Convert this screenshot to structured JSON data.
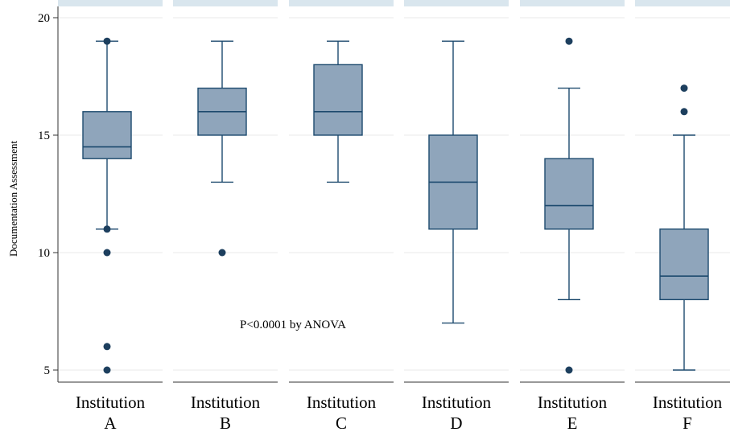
{
  "chart_data": {
    "type": "box",
    "ylabel": "Documentation Assessment",
    "ylim": [
      4,
      20
    ],
    "yticks": [
      5,
      10,
      15,
      20
    ],
    "grid": true,
    "annotation": "P<0.0001 by ANOVA",
    "colors": {
      "box_fill": "#8fa5bb",
      "box_stroke": "#1d4a6e",
      "outlier": "#1d3f5e",
      "panel_strip": "#d9e6ee",
      "grid": "#eaeaea",
      "axis": "#333333"
    },
    "groups": [
      {
        "label_line1": "Institution",
        "label_line2": "A",
        "whisker_low": 11,
        "q1": 14,
        "median": 14.5,
        "q3": 16,
        "whisker_high": 19,
        "outliers": [
          19,
          11,
          10,
          6,
          5
        ]
      },
      {
        "label_line1": "Institution",
        "label_line2": "B",
        "whisker_low": 13,
        "q1": 15,
        "median": 16,
        "q3": 17,
        "whisker_high": 19,
        "outliers": [
          10
        ]
      },
      {
        "label_line1": "Institution",
        "label_line2": "C",
        "whisker_low": 13,
        "q1": 15,
        "median": 16,
        "q3": 18,
        "whisker_high": 19,
        "outliers": []
      },
      {
        "label_line1": "Institution",
        "label_line2": "D",
        "whisker_low": 7,
        "q1": 11,
        "median": 13,
        "q3": 15,
        "whisker_high": 19,
        "outliers": []
      },
      {
        "label_line1": "Institution",
        "label_line2": "E",
        "whisker_low": 8,
        "q1": 11,
        "median": 12,
        "q3": 14,
        "whisker_high": 17,
        "outliers": [
          19,
          5
        ]
      },
      {
        "label_line1": "Institution",
        "label_line2": "F",
        "whisker_low": 5,
        "q1": 8,
        "median": 9,
        "q3": 11,
        "whisker_high": 15,
        "outliers": [
          17,
          16
        ]
      }
    ]
  }
}
